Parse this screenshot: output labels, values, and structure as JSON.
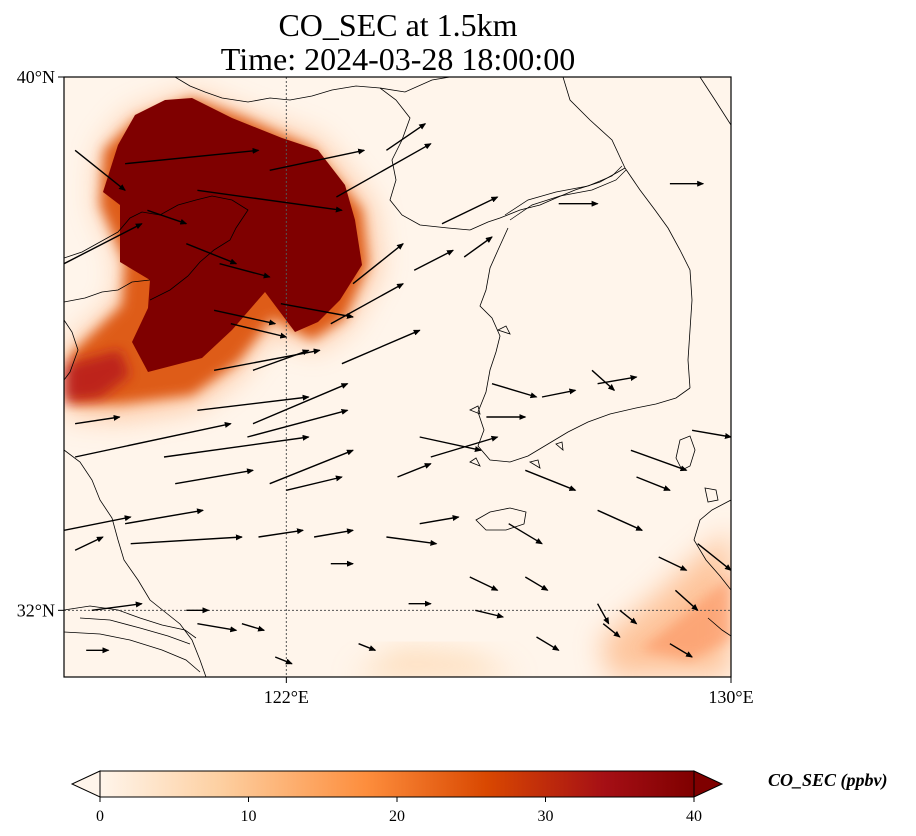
{
  "title": {
    "line1": "CO_SEC at 1.5km",
    "line2": "Time: 2024-03-28 18:00:00"
  },
  "map": {
    "lon_range": [
      118,
      130
    ],
    "lat_range": [
      31,
      40
    ],
    "lat_ticks": [
      {
        "value": 40,
        "label": "40°N"
      },
      {
        "value": 32,
        "label": "32°N"
      }
    ],
    "lon_ticks": [
      {
        "value": 122,
        "label": "122°E"
      },
      {
        "value": 130,
        "label": "130°E"
      }
    ],
    "gridlines": {
      "lon": [
        122
      ],
      "lat": [
        32
      ]
    },
    "field_units": "ppbv",
    "plume_regions": [
      {
        "name": "main-plume",
        "value": 40,
        "lon": [
          119.2,
          123.6
        ],
        "lat": [
          35.6,
          39.5
        ]
      },
      {
        "name": "plume-lower-arm",
        "value": 40,
        "lon": [
          119.6,
          121.8
        ],
        "lat": [
          34.9,
          35.9
        ]
      },
      {
        "name": "coastal-plume-west",
        "value": 28,
        "lon": [
          118.0,
          119.6
        ],
        "lat": [
          34.3,
          35.4
        ]
      },
      {
        "name": "southeast-plume",
        "value": 18,
        "lon": [
          127.8,
          130.0
        ],
        "lat": [
          31.5,
          32.8
        ]
      }
    ],
    "wind_vectors": [
      [
        118.2,
        38.9,
        119.1,
        38.3
      ],
      [
        119.1,
        38.7,
        121.5,
        38.9
      ],
      [
        120.4,
        38.3,
        123.0,
        38.0
      ],
      [
        121.7,
        38.6,
        123.4,
        38.9
      ],
      [
        123.8,
        38.9,
        124.5,
        39.3
      ],
      [
        124.8,
        37.8,
        125.8,
        38.2
      ],
      [
        126.9,
        38.1,
        127.6,
        38.1
      ],
      [
        128.9,
        38.4,
        129.5,
        38.4
      ],
      [
        119.5,
        38.0,
        120.2,
        37.8
      ],
      [
        120.2,
        37.5,
        121.1,
        37.2
      ],
      [
        121.9,
        36.6,
        123.2,
        36.4
      ],
      [
        123.2,
        36.9,
        124.1,
        37.5
      ],
      [
        124.3,
        37.1,
        125.0,
        37.4
      ],
      [
        125.2,
        37.3,
        125.7,
        37.6
      ],
      [
        118.0,
        37.2,
        119.4,
        37.8
      ],
      [
        120.8,
        37.2,
        121.7,
        37.0
      ],
      [
        122.9,
        38.2,
        124.6,
        39.0
      ],
      [
        120.7,
        35.6,
        122.6,
        35.9
      ],
      [
        120.4,
        35.0,
        122.4,
        35.2
      ],
      [
        121.3,
        34.6,
        123.1,
        35.0
      ],
      [
        121.7,
        33.9,
        123.2,
        34.4
      ],
      [
        118.2,
        34.8,
        119.0,
        34.9
      ],
      [
        118.2,
        34.3,
        121.0,
        34.8
      ],
      [
        119.8,
        34.3,
        122.4,
        34.6
      ],
      [
        121.4,
        34.8,
        123.1,
        35.4
      ],
      [
        123.0,
        35.7,
        124.4,
        36.2
      ],
      [
        122.8,
        36.3,
        124.1,
        36.9
      ],
      [
        124.0,
        34.0,
        124.6,
        34.2
      ],
      [
        124.6,
        34.3,
        125.8,
        34.6
      ],
      [
        124.4,
        33.3,
        125.1,
        33.4
      ],
      [
        125.6,
        34.9,
        126.3,
        34.9
      ],
      [
        126.6,
        35.2,
        127.2,
        35.3
      ],
      [
        127.6,
        35.4,
        128.3,
        35.5
      ],
      [
        118.0,
        33.2,
        119.2,
        33.4
      ],
      [
        120.0,
        33.9,
        121.4,
        34.1
      ],
      [
        119.2,
        33.0,
        121.2,
        33.1
      ],
      [
        122.0,
        33.8,
        123.0,
        34.0
      ],
      [
        122.5,
        33.1,
        123.2,
        33.2
      ],
      [
        123.8,
        33.1,
        124.7,
        33.0
      ],
      [
        124.4,
        34.6,
        125.5,
        34.4
      ],
      [
        125.7,
        35.4,
        126.5,
        35.2
      ],
      [
        126.3,
        34.1,
        127.2,
        33.8
      ],
      [
        127.5,
        35.6,
        127.9,
        35.3
      ],
      [
        128.2,
        34.4,
        129.2,
        34.1
      ],
      [
        129.3,
        34.7,
        130.0,
        34.6
      ],
      [
        127.6,
        33.5,
        128.4,
        33.2
      ],
      [
        126.0,
        33.3,
        126.6,
        33.0
      ],
      [
        126.3,
        32.5,
        126.7,
        32.3
      ],
      [
        128.3,
        34.0,
        128.9,
        33.8
      ],
      [
        129.4,
        33.0,
        130.0,
        32.6
      ],
      [
        118.5,
        32.0,
        119.4,
        32.1
      ],
      [
        118.4,
        31.4,
        118.8,
        31.4
      ],
      [
        119.1,
        33.3,
        120.5,
        33.5
      ],
      [
        118.2,
        32.9,
        118.7,
        33.1
      ],
      [
        121.5,
        33.1,
        122.3,
        33.2
      ],
      [
        122.8,
        32.7,
        123.2,
        32.7
      ],
      [
        124.2,
        32.1,
        124.6,
        32.1
      ],
      [
        125.3,
        32.5,
        125.8,
        32.3
      ],
      [
        125.4,
        32.0,
        125.9,
        31.9
      ],
      [
        126.5,
        31.6,
        126.9,
        31.4
      ],
      [
        127.7,
        31.8,
        128.0,
        31.6
      ],
      [
        128.9,
        31.5,
        129.3,
        31.3
      ],
      [
        128.7,
        32.8,
        129.2,
        32.6
      ],
      [
        127.6,
        32.1,
        127.8,
        31.8
      ],
      [
        128.0,
        32.0,
        128.3,
        31.8
      ],
      [
        129.0,
        32.3,
        129.4,
        32.0
      ],
      [
        120.2,
        32.0,
        120.6,
        32.0
      ],
      [
        120.4,
        31.8,
        121.1,
        31.7
      ],
      [
        121.2,
        31.8,
        121.6,
        31.7
      ],
      [
        121.8,
        31.3,
        122.1,
        31.2
      ],
      [
        123.3,
        31.5,
        123.6,
        31.4
      ],
      [
        121.4,
        35.6,
        122.4,
        35.9
      ],
      [
        121.0,
        36.3,
        122.0,
        36.1
      ],
      [
        120.7,
        36.5,
        121.8,
        36.3
      ]
    ]
  },
  "colorbar": {
    "title": "CO_SEC (ppbv)",
    "min": 0,
    "max": 40,
    "ticks": [
      {
        "value": 0,
        "label": "0"
      },
      {
        "value": 10,
        "label": "10"
      },
      {
        "value": 20,
        "label": "20"
      },
      {
        "value": 30,
        "label": "30"
      },
      {
        "value": 40,
        "label": "40"
      }
    ],
    "colors": [
      "#fff5eb",
      "#fdd0a2",
      "#fd8d3c",
      "#d94801",
      "#a50f15",
      "#7f0000"
    ]
  }
}
